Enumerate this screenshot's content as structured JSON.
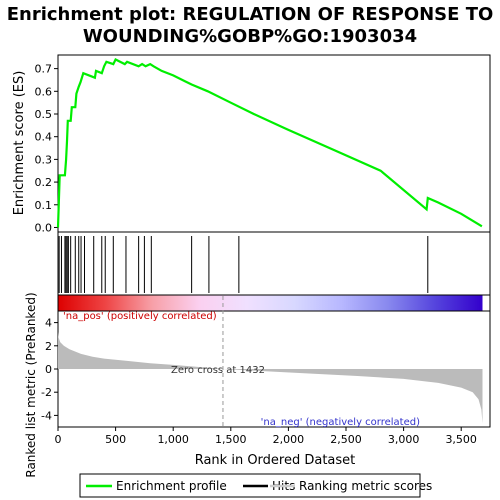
{
  "chart_data": {
    "type": "line",
    "title_line1": "Enrichment plot: REGULATION OF RESPONSE TO",
    "title_line2": "WOUNDING%GOBP%GO:1903034",
    "es_panel": {
      "ylabel": "Enrichment score (ES)",
      "ylim": [
        -0.02,
        0.76
      ],
      "yticks": [
        "0.0",
        "0.1",
        "0.2",
        "0.3",
        "0.4",
        "0.5",
        "0.6",
        "0.7"
      ],
      "ytick_values": [
        0.0,
        0.1,
        0.2,
        0.3,
        0.4,
        0.5,
        0.6,
        0.7
      ],
      "series_color": "#00ee00",
      "points": [
        [
          0,
          0.0
        ],
        [
          15,
          0.23
        ],
        [
          60,
          0.23
        ],
        [
          70,
          0.3
        ],
        [
          78,
          0.38
        ],
        [
          85,
          0.47
        ],
        [
          110,
          0.47
        ],
        [
          120,
          0.53
        ],
        [
          150,
          0.53
        ],
        [
          160,
          0.59
        ],
        [
          180,
          0.62
        ],
        [
          195,
          0.64
        ],
        [
          220,
          0.68
        ],
        [
          320,
          0.66
        ],
        [
          330,
          0.69
        ],
        [
          380,
          0.68
        ],
        [
          400,
          0.71
        ],
        [
          420,
          0.73
        ],
        [
          480,
          0.72
        ],
        [
          500,
          0.74
        ],
        [
          580,
          0.72
        ],
        [
          600,
          0.73
        ],
        [
          700,
          0.71
        ],
        [
          730,
          0.72
        ],
        [
          760,
          0.71
        ],
        [
          800,
          0.72
        ],
        [
          830,
          0.71
        ],
        [
          900,
          0.69
        ],
        [
          1000,
          0.67
        ],
        [
          1100,
          0.645
        ],
        [
          1160,
          0.63
        ],
        [
          1300,
          0.6
        ],
        [
          1500,
          0.55
        ],
        [
          1700,
          0.5
        ],
        [
          2000,
          0.43
        ],
        [
          2400,
          0.34
        ],
        [
          2800,
          0.25
        ],
        [
          3200,
          0.08
        ],
        [
          3210,
          0.13
        ],
        [
          3300,
          0.11
        ],
        [
          3500,
          0.06
        ],
        [
          3680,
          0.005
        ]
      ]
    },
    "hits": [
      10,
      30,
      60,
      70,
      80,
      90,
      110,
      150,
      180,
      200,
      230,
      310,
      380,
      410,
      480,
      590,
      700,
      750,
      810,
      1160,
      1310,
      1570,
      3210
    ],
    "heatmap_gradient": [
      "#dd0000",
      "#ee4444",
      "#f7a0a8",
      "#fbd0f0",
      "#f0e0ff",
      "#d8d8ff",
      "#b8b8ff",
      "#8888ee",
      "#5544dd",
      "#3300cc"
    ],
    "metric_panel": {
      "ylabel": "Ranked list metric (PreRanked)",
      "ylim": [
        -5,
        5
      ],
      "yticks": [
        "4",
        "2",
        "0",
        "-2",
        "-4"
      ],
      "ytick_values": [
        4,
        2,
        0,
        -2,
        -4
      ],
      "zero_cross": 1432,
      "zero_cross_label": "Zero cross at 1432",
      "pos_label": "'na_pos' (positively correlated)",
      "neg_label": "'na_neg' (negatively correlated)",
      "curve": [
        [
          0,
          3.2
        ],
        [
          5,
          2.7
        ],
        [
          20,
          2.3
        ],
        [
          50,
          2.0
        ],
        [
          100,
          1.7
        ],
        [
          200,
          1.3
        ],
        [
          300,
          1.05
        ],
        [
          400,
          0.9
        ],
        [
          600,
          0.7
        ],
        [
          800,
          0.5
        ],
        [
          1000,
          0.35
        ],
        [
          1200,
          0.2
        ],
        [
          1432,
          0.0
        ],
        [
          1800,
          -0.2
        ],
        [
          2200,
          -0.4
        ],
        [
          2600,
          -0.6
        ],
        [
          3000,
          -0.85
        ],
        [
          3300,
          -1.2
        ],
        [
          3500,
          -1.6
        ],
        [
          3600,
          -2.0
        ],
        [
          3650,
          -2.6
        ],
        [
          3675,
          -3.5
        ],
        [
          3685,
          -4.7
        ]
      ]
    },
    "xaxis": {
      "label": "Rank in Ordered Dataset",
      "xlim": [
        0,
        3750
      ],
      "ticks": [
        "0",
        "500",
        "1,000",
        "1,500",
        "2,000",
        "2,500",
        "3,000",
        "3,500"
      ],
      "tick_values": [
        0,
        500,
        1000,
        1500,
        2000,
        2500,
        3000,
        3500
      ]
    },
    "legend": {
      "placement": "bottom",
      "entries": [
        {
          "label": "Enrichment profile",
          "color": "#00ee00"
        },
        {
          "label": "Hits",
          "color": "#000000"
        },
        {
          "label": "Ranking metric scores",
          "color": "#cccccc"
        }
      ]
    }
  }
}
